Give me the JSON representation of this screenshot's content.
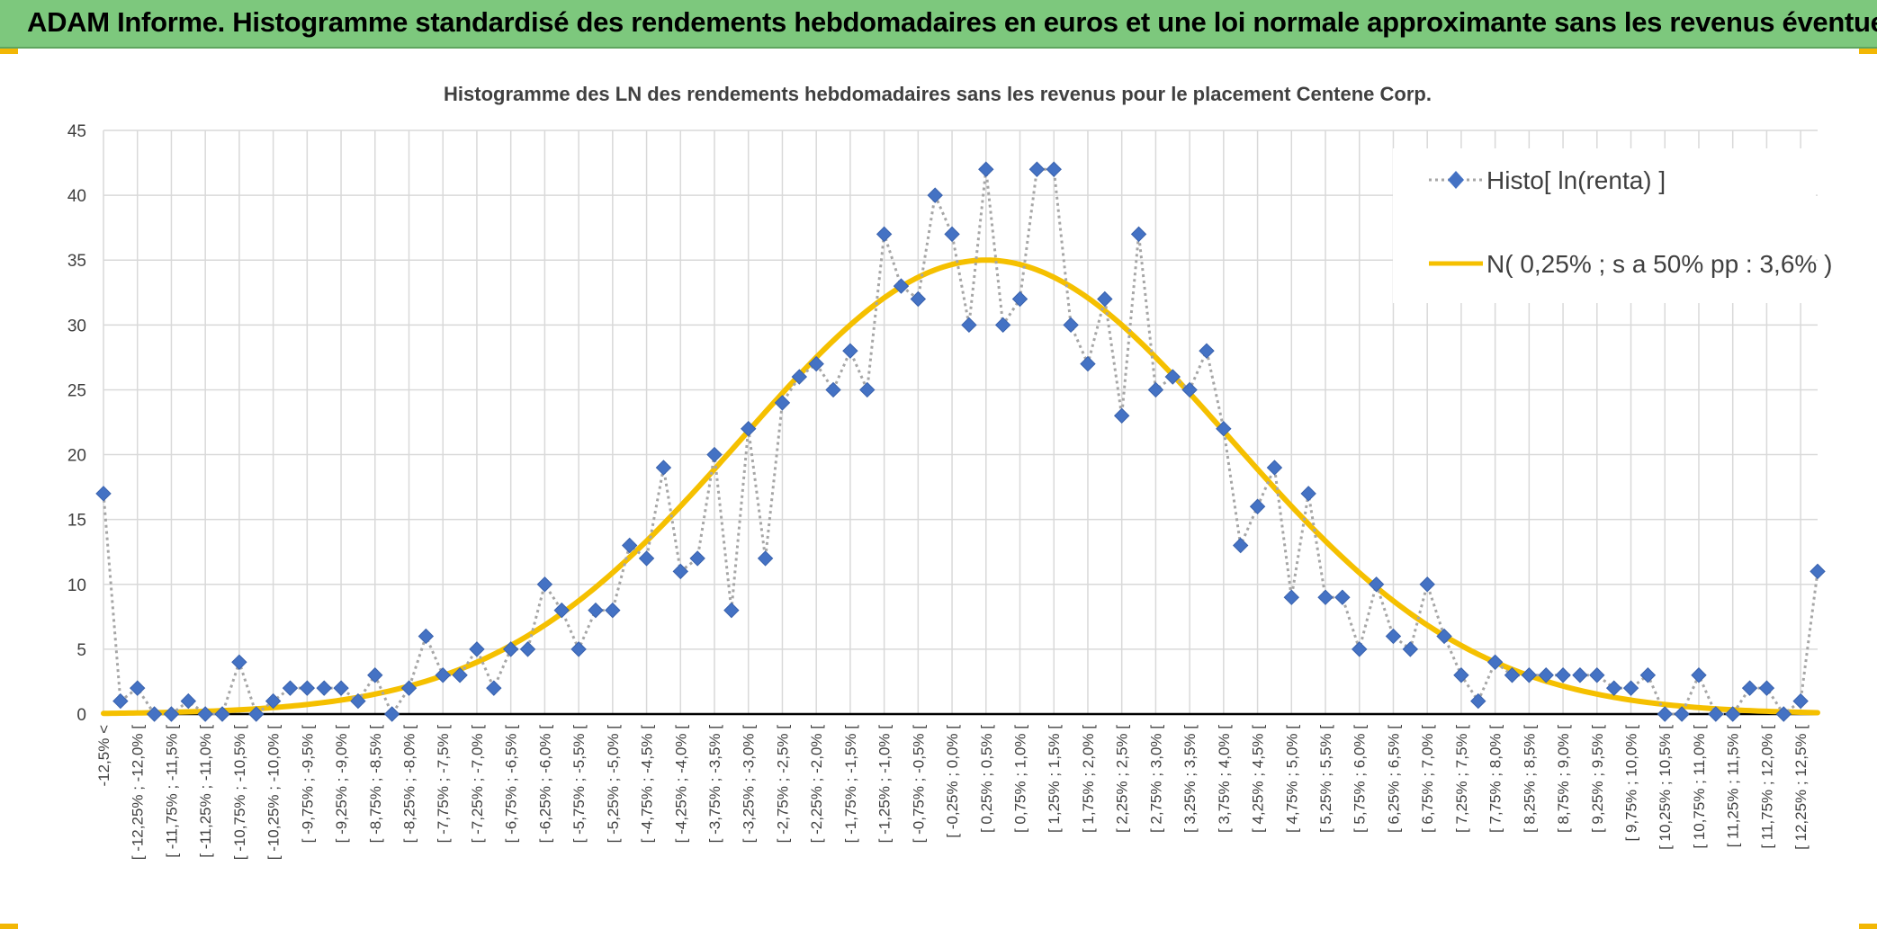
{
  "header": {
    "title": "ADAM Informe. Histogramme standardisé des rendements hebdomadaires en euros et une loi normale approximante sans les revenus éventuels"
  },
  "colors": {
    "header_bg": "#7dc87d",
    "series_marker": "#4472c4",
    "series_line": "#a6a6a6",
    "normal_curve": "#f5c000",
    "accent": "#f2b705"
  },
  "chart_data": {
    "type": "line",
    "title": "Histogramme des LN des rendements hebdomadaires sans les revenus pour le placement Centene Corp.",
    "xlabel": "",
    "ylabel": "",
    "ylim": [
      0,
      45
    ],
    "yticks": [
      0,
      5,
      10,
      15,
      20,
      25,
      30,
      35,
      40,
      45
    ],
    "grid": true,
    "legend_position": "top-right",
    "x_tick_labels": [
      "-12,5% <",
      "[ -12,25% ; -12,0% [",
      "[ -11,75% ; -11,5% [",
      "[ -11,25% ; -11,0% [",
      "[ -10,75% ; -10,5% [",
      "[ -10,25% ; -10,0% [",
      "[ -9,75% ; -9,5% [",
      "[ -9,25% ; -9,0% [",
      "[ -8,75% ; -8,5% [",
      "[ -8,25% ; -8,0% [",
      "[ -7,75% ; -7,5% [",
      "[ -7,25% ; -7,0% [",
      "[ -6,75% ; -6,5% [",
      "[ -6,25% ; -6,0% [",
      "[ -5,75% ; -5,5% [",
      "[ -5,25% ; -5,0% [",
      "[ -4,75% ; -4,5% [",
      "[ -4,25% ; -4,0% [",
      "[ -3,75% ; -3,5% [",
      "[ -3,25% ; -3,0% [",
      "[ -2,75% ; -2,5% [",
      "[ -2,25% ; -2,0% [",
      "[ -1,75% ; -1,5% [",
      "[ -1,25% ; -1,0% [",
      "[ -0,75% ; -0,5% [",
      "[ -0,25% ; 0,0% [",
      "[ 0,25% ; 0,5% [",
      "[ 0,75% ; 1,0% [",
      "[ 1,25% ; 1,5% [",
      "[ 1,75% ; 2,0% [",
      "[ 2,25% ; 2,5% [",
      "[ 2,75% ; 3,0% [",
      "[ 3,25% ; 3,5% [",
      "[ 3,75% ; 4,0% [",
      "[ 4,25% ; 4,5% [",
      "[ 4,75% ; 5,0% [",
      "[ 5,25% ; 5,5% [",
      "[ 5,75% ; 6,0% [",
      "[ 6,25% ; 6,5% [",
      "[ 6,75% ; 7,0% [",
      "[ 7,25% ; 7,5% [",
      "[ 7,75% ; 8,0% [",
      "[ 8,25% ; 8,5% [",
      "[ 8,75% ; 9,0% [",
      "[ 9,25% ; 9,5% [",
      "[ 9,75% ; 10,0% [",
      "[ 10,25% ; 10,5% [",
      "[ 10,75% ; 11,0% [",
      "[ 11,25% ; 11,5% [",
      "[ 11,75% ; 12,0% [",
      "[ 12,25% ; 12,5% ["
    ],
    "series": [
      {
        "name": "Histo[ ln(renta) ]",
        "style": "dotted-line-diamond-markers",
        "values": [
          17,
          1,
          2,
          0,
          0,
          1,
          0,
          0,
          4,
          0,
          1,
          2,
          2,
          2,
          2,
          1,
          3,
          0,
          2,
          6,
          3,
          3,
          5,
          2,
          5,
          5,
          10,
          8,
          5,
          8,
          8,
          13,
          12,
          19,
          11,
          12,
          20,
          8,
          22,
          12,
          24,
          26,
          27,
          25,
          28,
          25,
          37,
          33,
          32,
          40,
          37,
          30,
          42,
          30,
          32,
          42,
          42,
          30,
          27,
          32,
          23,
          37,
          25,
          26,
          25,
          28,
          22,
          13,
          16,
          19,
          9,
          17,
          9,
          9,
          5,
          10,
          6,
          5,
          10,
          6,
          3,
          1,
          4,
          3,
          3,
          3,
          3,
          3,
          3,
          2,
          2,
          3,
          0,
          0,
          3,
          0,
          0,
          2,
          2,
          0,
          1,
          11
        ]
      },
      {
        "name": "N( 0,25% ; s a 50% pp : 3,6% )",
        "style": "smooth-line",
        "distribution": "normal",
        "mean_pct": 0.25,
        "sd_pct": 3.6,
        "peak": 35
      }
    ]
  }
}
